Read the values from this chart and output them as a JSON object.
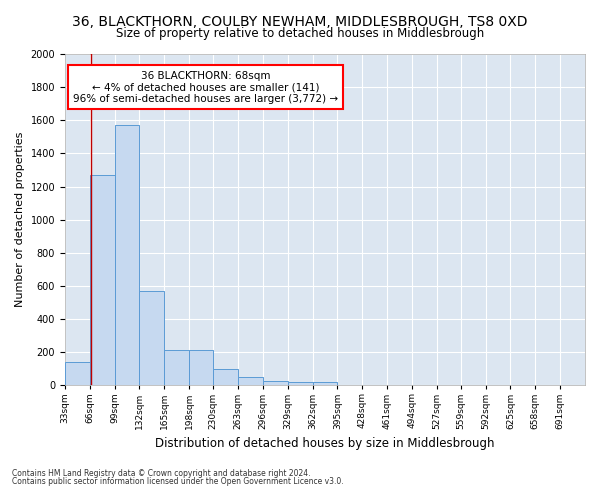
{
  "title": "36, BLACKTHORN, COULBY NEWHAM, MIDDLESBROUGH, TS8 0XD",
  "subtitle": "Size of property relative to detached houses in Middlesbrough",
  "xlabel": "Distribution of detached houses by size in Middlesbrough",
  "ylabel": "Number of detached properties",
  "footnote1": "Contains HM Land Registry data © Crown copyright and database right 2024.",
  "footnote2": "Contains public sector information licensed under the Open Government Licence v3.0.",
  "annotation_line1": "36 BLACKTHORN: 68sqm",
  "annotation_line2": "← 4% of detached houses are smaller (141)",
  "annotation_line3": "96% of semi-detached houses are larger (3,772) →",
  "bar_edges": [
    33,
    66,
    99,
    132,
    165,
    198,
    230,
    263,
    296,
    329,
    362,
    395,
    428,
    461,
    494,
    527,
    559,
    592,
    625,
    658,
    691
  ],
  "bar_heights": [
    141,
    1270,
    1570,
    570,
    215,
    215,
    100,
    50,
    27,
    22,
    22,
    0,
    0,
    0,
    0,
    0,
    0,
    0,
    0,
    0
  ],
  "tick_labels": [
    "33sqm",
    "66sqm",
    "99sqm",
    "132sqm",
    "165sqm",
    "198sqm",
    "230sqm",
    "263sqm",
    "296sqm",
    "329sqm",
    "362sqm",
    "395sqm",
    "428sqm",
    "461sqm",
    "494sqm",
    "527sqm",
    "559sqm",
    "592sqm",
    "625sqm",
    "658sqm",
    "691sqm"
  ],
  "property_size": 68,
  "bar_color": "#c6d9f0",
  "bar_edge_color": "#5b9bd5",
  "vline_color": "#c00000",
  "background_color": "#dce6f1",
  "ylim": [
    0,
    2000
  ],
  "yticks": [
    0,
    200,
    400,
    600,
    800,
    1000,
    1200,
    1400,
    1600,
    1800,
    2000
  ],
  "title_fontsize": 10,
  "subtitle_fontsize": 8.5,
  "ylabel_fontsize": 8,
  "xlabel_fontsize": 8.5,
  "tick_fontsize": 7,
  "xtick_fontsize": 6.5,
  "annotation_fontsize": 7.5,
  "footnote_fontsize": 5.5
}
